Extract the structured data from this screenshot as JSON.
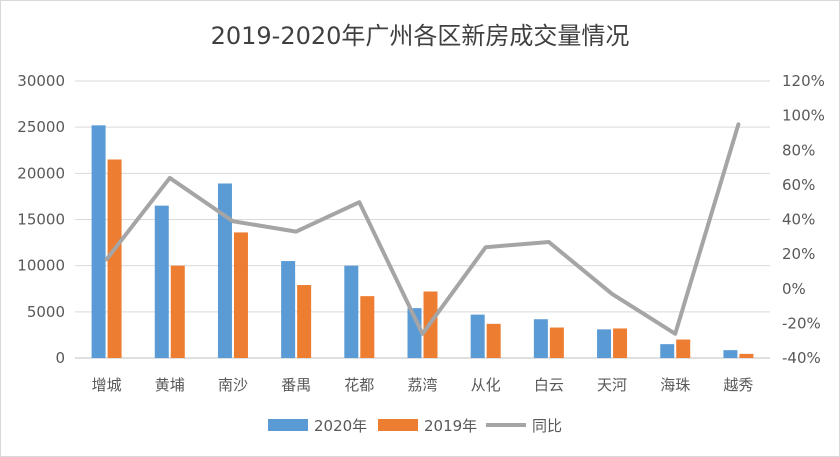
{
  "chart_data": {
    "type": "bar",
    "title": "2019-2020年广州各区新房成交量情况",
    "categories": [
      "增城",
      "黄埔",
      "南沙",
      "番禺",
      "花都",
      "荔湾",
      "从化",
      "白云",
      "天河",
      "海珠",
      "越秀"
    ],
    "series": [
      {
        "name": "2020年",
        "type": "bar",
        "axis": "left",
        "color": "#5B9BD5",
        "values": [
          25200,
          16500,
          18900,
          10500,
          10000,
          5400,
          4700,
          4200,
          3100,
          1500,
          850
        ]
      },
      {
        "name": "2019年",
        "type": "bar",
        "axis": "left",
        "color": "#ED7D31",
        "values": [
          21500,
          10000,
          13600,
          7900,
          6700,
          7200,
          3700,
          3300,
          3200,
          2000,
          450
        ]
      },
      {
        "name": "同比",
        "type": "line",
        "axis": "right",
        "color": "#A5A5A5",
        "values": [
          17,
          64,
          39,
          33,
          50,
          -26,
          24,
          27,
          -3,
          -26,
          95
        ]
      }
    ],
    "y_left": {
      "min": 0,
      "max": 30000,
      "ticks": [
        "0",
        "5000",
        "10000",
        "15000",
        "20000",
        "25000",
        "30000"
      ]
    },
    "y_right": {
      "min": -40,
      "max": 120,
      "ticks": [
        "-40%",
        "-20%",
        "0%",
        "20%",
        "40%",
        "60%",
        "80%",
        "100%",
        "120%"
      ]
    },
    "grid": true,
    "legend_position": "bottom"
  }
}
